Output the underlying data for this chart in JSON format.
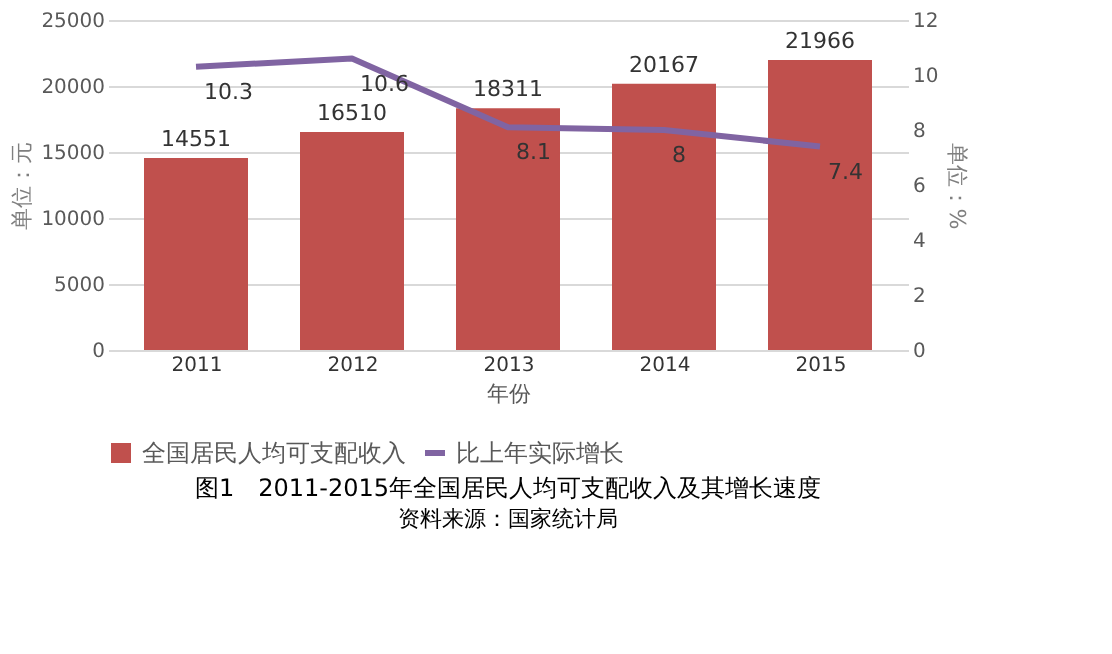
{
  "chart_data": {
    "type": "bar",
    "title": "图1　2011-2015年全国居民人均可支配收入及其增长速度",
    "categories": [
      "2011",
      "2012",
      "2013",
      "2014",
      "2015"
    ],
    "xlabel": "年份",
    "ylabel": "单位：元",
    "y2label": "单位：%",
    "series": [
      {
        "name": "全国居民人均可支配收入",
        "color": "#c0504d",
        "values": [
          14551,
          16510,
          18311,
          20167,
          21966
        ]
      },
      {
        "name": "比上年实际增长",
        "type": "line",
        "axis": "y2",
        "color": "#8064a2",
        "values": [
          10.3,
          10.6,
          8.1,
          8,
          7.4
        ]
      }
    ],
    "ylim": [
      0,
      25000
    ],
    "yticks": [
      0,
      5000,
      10000,
      15000,
      20000,
      25000
    ],
    "y2lim": [
      0,
      12
    ],
    "y2ticks": [
      0,
      2,
      4,
      6,
      8,
      10,
      12
    ],
    "data_labels": true,
    "grid": "y",
    "legend": "bottom",
    "marker": "none",
    "line_style": "solid",
    "annotations": [
      "资料来源：国家统计局"
    ]
  }
}
